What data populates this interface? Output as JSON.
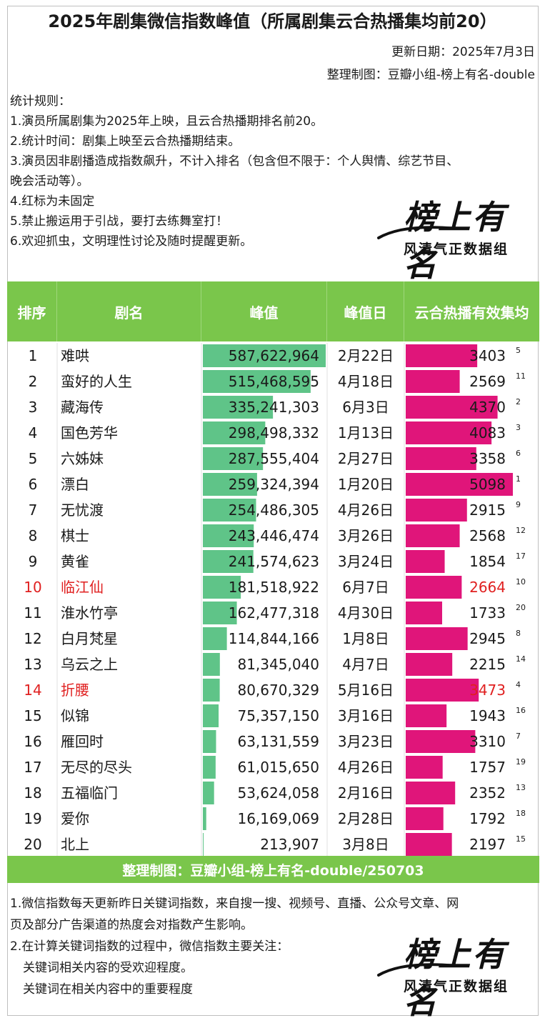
{
  "title": "2025年剧集微信指数峰值（所属剧集云合热播集均前20）",
  "update_date": "更新日期：2025年7月3日",
  "credit": "整理制图：豆瓣小组-榜上有名-double",
  "rules": [
    "统计规则：",
    "1.演员所属剧集为2025年上映，且云合热播期排名前20。",
    "2.统计时间：剧集上映至云合热播期结束。",
    "3.演员因非剧播造成指数飙升，不计入排名（包含但不限于：个人舆情、综艺节目、",
    "晚会活动等）。",
    "4.红标为未固定",
    "5.禁止搬运用于引战，要打去练舞室打！",
    "6.欢迎抓虫，文明理性讨论及随时提醒更新。"
  ],
  "logo": {
    "big": "榜上有名",
    "small": "风清气正数据组"
  },
  "headers": [
    "排序",
    "剧名",
    "峰值",
    "峰值日",
    "云合热播有效集均"
  ],
  "colors": {
    "header_green": "#7ac64b",
    "peak_bar": "#5fc488",
    "yunhe_bar": "#e0157a",
    "red_text": "#e02020"
  },
  "chart_data": {
    "type": "table",
    "columns": [
      "排序",
      "剧名",
      "峰值",
      "峰值日",
      "云合热播有效集均"
    ],
    "rows": [
      {
        "rank": "1",
        "name": "难哄",
        "peak": 587622964,
        "peak_label": "587,622,964",
        "date": "2月22日",
        "yunhe": 3403,
        "yunhe_rank": "5",
        "red": false
      },
      {
        "rank": "2",
        "name": "蛮好的人生",
        "peak": 515468595,
        "peak_label": "515,468,595",
        "date": "4月18日",
        "yunhe": 2569,
        "yunhe_rank": "11",
        "red": false
      },
      {
        "rank": "3",
        "name": "藏海传",
        "peak": 335241303,
        "peak_label": "335,241,303",
        "date": "6月3日",
        "yunhe": 4370,
        "yunhe_rank": "2",
        "red": false
      },
      {
        "rank": "4",
        "name": "国色芳华",
        "peak": 298498332,
        "peak_label": "298,498,332",
        "date": "1月13日",
        "yunhe": 4083,
        "yunhe_rank": "3",
        "red": false
      },
      {
        "rank": "5",
        "name": "六姊妹",
        "peak": 287555404,
        "peak_label": "287,555,404",
        "date": "2月27日",
        "yunhe": 3358,
        "yunhe_rank": "6",
        "red": false
      },
      {
        "rank": "6",
        "name": "漂白",
        "peak": 259324394,
        "peak_label": "259,324,394",
        "date": "1月20日",
        "yunhe": 5098,
        "yunhe_rank": "1",
        "red": false
      },
      {
        "rank": "7",
        "name": "无忧渡",
        "peak": 254486305,
        "peak_label": "254,486,305",
        "date": "4月26日",
        "yunhe": 2915,
        "yunhe_rank": "9",
        "red": false
      },
      {
        "rank": "8",
        "name": "棋士",
        "peak": 243446474,
        "peak_label": "243,446,474",
        "date": "3月26日",
        "yunhe": 2568,
        "yunhe_rank": "12",
        "red": false
      },
      {
        "rank": "9",
        "name": "黄雀",
        "peak": 241574623,
        "peak_label": "241,574,623",
        "date": "3月24日",
        "yunhe": 1854,
        "yunhe_rank": "17",
        "red": false
      },
      {
        "rank": "10",
        "name": "临江仙",
        "peak": 181518922,
        "peak_label": "181,518,922",
        "date": "6月7日",
        "yunhe": 2664,
        "yunhe_rank": "10",
        "red": true
      },
      {
        "rank": "11",
        "name": "淮水竹亭",
        "peak": 162477318,
        "peak_label": "162,477,318",
        "date": "4月30日",
        "yunhe": 1733,
        "yunhe_rank": "20",
        "red": false
      },
      {
        "rank": "12",
        "name": "白月梵星",
        "peak": 114844166,
        "peak_label": "114,844,166",
        "date": "1月8日",
        "yunhe": 2945,
        "yunhe_rank": "8",
        "red": false
      },
      {
        "rank": "13",
        "name": "乌云之上",
        "peak": 81345040,
        "peak_label": "81,345,040",
        "date": "4月7日",
        "yunhe": 2215,
        "yunhe_rank": "14",
        "red": false
      },
      {
        "rank": "14",
        "name": "折腰",
        "peak": 80670329,
        "peak_label": "80,670,329",
        "date": "5月16日",
        "yunhe": 3473,
        "yunhe_rank": "4",
        "red": true
      },
      {
        "rank": "15",
        "name": "似锦",
        "peak": 75357150,
        "peak_label": "75,357,150",
        "date": "3月16日",
        "yunhe": 1943,
        "yunhe_rank": "16",
        "red": false
      },
      {
        "rank": "16",
        "name": "雁回时",
        "peak": 63131559,
        "peak_label": "63,131,559",
        "date": "3月23日",
        "yunhe": 3310,
        "yunhe_rank": "7",
        "red": false
      },
      {
        "rank": "17",
        "name": "无尽的尽头",
        "peak": 61015650,
        "peak_label": "61,015,650",
        "date": "4月26日",
        "yunhe": 1757,
        "yunhe_rank": "19",
        "red": false
      },
      {
        "rank": "18",
        "name": "五福临门",
        "peak": 53624058,
        "peak_label": "53,624,058",
        "date": "2月16日",
        "yunhe": 2352,
        "yunhe_rank": "13",
        "red": false
      },
      {
        "rank": "19",
        "name": "爱你",
        "peak": 16169069,
        "peak_label": "16,169,069",
        "date": "2月28日",
        "yunhe": 1792,
        "yunhe_rank": "18",
        "red": false
      },
      {
        "rank": "20",
        "name": "北上",
        "peak": 213907,
        "peak_label": "213,907",
        "date": "3月8日",
        "yunhe": 2197,
        "yunhe_rank": "15",
        "red": false
      }
    ],
    "peak_max": 587622964,
    "yunhe_max": 5098
  },
  "footer": "整理制图：豆瓣小组-榜上有名-double/250703",
  "notes": [
    "1.微信指数每天更新昨日关键词指数，来自搜一搜、视频号、直播、公众号文章、网",
    "页及部分广告渠道的热度会对指数产生影响。",
    "2.在计算关键词指数的过程中，微信指数主要关注：",
    "关键词相关内容的受欢迎程度。",
    "关键词在相关内容中的重要程度"
  ]
}
